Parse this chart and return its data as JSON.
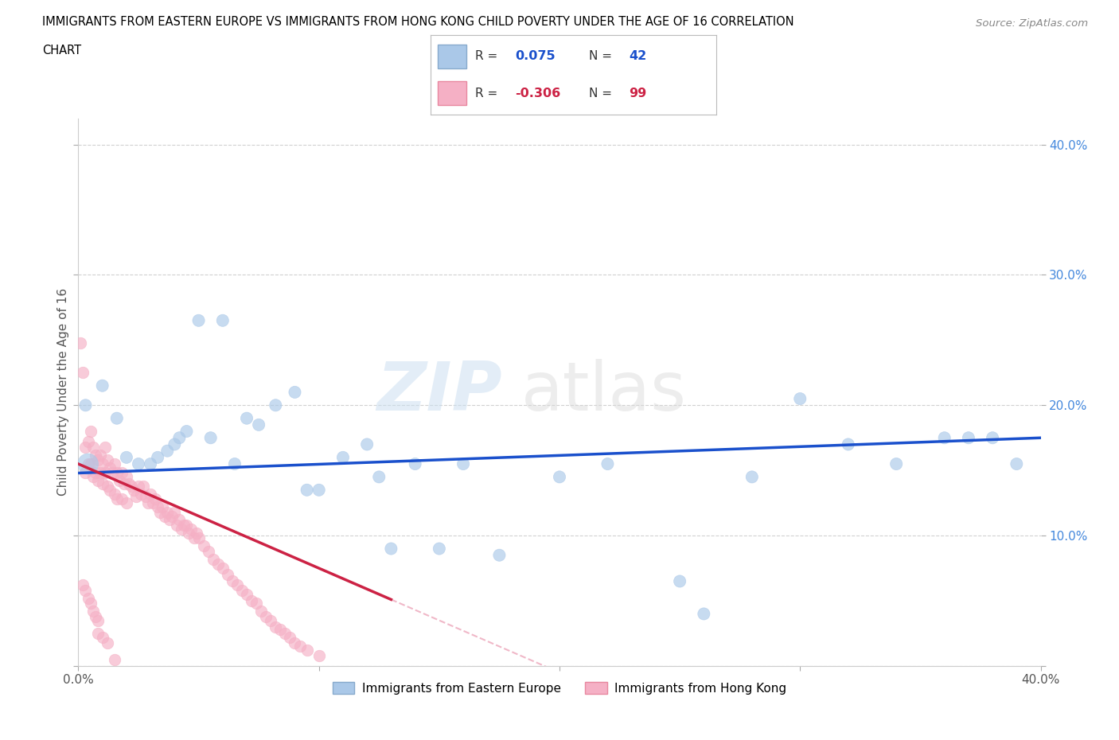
{
  "title_line1": "IMMIGRANTS FROM EASTERN EUROPE VS IMMIGRANTS FROM HONG KONG CHILD POVERTY UNDER THE AGE OF 16 CORRELATION",
  "title_line2": "CHART",
  "source": "Source: ZipAtlas.com",
  "ylabel": "Child Poverty Under the Age of 16",
  "xlim": [
    0.0,
    0.4
  ],
  "ylim": [
    0.0,
    0.42
  ],
  "xticks": [
    0.0,
    0.1,
    0.2,
    0.3,
    0.4
  ],
  "yticks": [
    0.0,
    0.1,
    0.2,
    0.3,
    0.4
  ],
  "xticklabels": [
    "0.0%",
    "",
    "",
    "",
    "40.0%"
  ],
  "yticklabels_right": [
    "",
    "10.0%",
    "20.0%",
    "30.0%",
    "40.0%"
  ],
  "blue_color": "#aac8e8",
  "pink_color": "#f5b0c5",
  "blue_edge_color": "#88aacc",
  "pink_edge_color": "#e888a0",
  "blue_line_color": "#1a50cc",
  "pink_line_color": "#cc2244",
  "pink_dash_color": "#f0b8c8",
  "grid_color": "#cccccc",
  "watermark_zip": "ZIP",
  "watermark_atlas": "atlas",
  "legend_r_blue": "0.075",
  "legend_n_blue": "42",
  "legend_r_pink": "-0.306",
  "legend_n_pink": "99",
  "legend_label_blue": "Immigrants from Eastern Europe",
  "legend_label_pink": "Immigrants from Hong Kong",
  "blue_x": [
    0.004,
    0.01,
    0.016,
    0.02,
    0.025,
    0.03,
    0.033,
    0.037,
    0.04,
    0.042,
    0.045,
    0.05,
    0.055,
    0.06,
    0.065,
    0.07,
    0.075,
    0.082,
    0.09,
    0.095,
    0.1,
    0.11,
    0.12,
    0.125,
    0.13,
    0.14,
    0.15,
    0.16,
    0.175,
    0.2,
    0.22,
    0.25,
    0.26,
    0.28,
    0.3,
    0.32,
    0.34,
    0.36,
    0.37,
    0.38,
    0.39,
    0.003
  ],
  "blue_y": [
    0.155,
    0.215,
    0.19,
    0.16,
    0.155,
    0.155,
    0.16,
    0.165,
    0.17,
    0.175,
    0.18,
    0.265,
    0.175,
    0.265,
    0.155,
    0.19,
    0.185,
    0.2,
    0.21,
    0.135,
    0.135,
    0.16,
    0.17,
    0.145,
    0.09,
    0.155,
    0.09,
    0.155,
    0.085,
    0.145,
    0.155,
    0.065,
    0.04,
    0.145,
    0.205,
    0.17,
    0.155,
    0.175,
    0.175,
    0.175,
    0.155,
    0.2
  ],
  "blue_sizes": [
    350,
    120,
    120,
    120,
    120,
    120,
    120,
    120,
    120,
    120,
    120,
    120,
    120,
    120,
    120,
    120,
    120,
    120,
    120,
    120,
    120,
    120,
    120,
    120,
    120,
    120,
    120,
    120,
    120,
    120,
    120,
    120,
    120,
    120,
    120,
    120,
    120,
    120,
    120,
    120,
    120,
    120
  ],
  "pink_x": [
    0.001,
    0.002,
    0.003,
    0.003,
    0.004,
    0.004,
    0.005,
    0.005,
    0.006,
    0.006,
    0.007,
    0.007,
    0.008,
    0.008,
    0.009,
    0.009,
    0.01,
    0.01,
    0.011,
    0.011,
    0.012,
    0.012,
    0.013,
    0.013,
    0.014,
    0.015,
    0.015,
    0.016,
    0.016,
    0.017,
    0.018,
    0.018,
    0.019,
    0.02,
    0.02,
    0.021,
    0.022,
    0.023,
    0.024,
    0.025,
    0.026,
    0.027,
    0.028,
    0.029,
    0.03,
    0.031,
    0.032,
    0.033,
    0.034,
    0.035,
    0.036,
    0.037,
    0.038,
    0.039,
    0.04,
    0.041,
    0.042,
    0.043,
    0.044,
    0.045,
    0.046,
    0.047,
    0.048,
    0.049,
    0.05,
    0.052,
    0.054,
    0.056,
    0.058,
    0.06,
    0.062,
    0.064,
    0.066,
    0.068,
    0.07,
    0.072,
    0.074,
    0.076,
    0.078,
    0.08,
    0.082,
    0.084,
    0.086,
    0.088,
    0.09,
    0.092,
    0.095,
    0.1,
    0.002,
    0.003,
    0.004,
    0.005,
    0.006,
    0.007,
    0.008,
    0.008,
    0.01,
    0.012,
    0.015
  ],
  "pink_y": [
    0.248,
    0.225,
    0.148,
    0.168,
    0.172,
    0.155,
    0.18,
    0.155,
    0.168,
    0.145,
    0.162,
    0.148,
    0.158,
    0.142,
    0.162,
    0.148,
    0.155,
    0.14,
    0.168,
    0.148,
    0.158,
    0.138,
    0.152,
    0.135,
    0.148,
    0.155,
    0.132,
    0.148,
    0.128,
    0.142,
    0.148,
    0.128,
    0.14,
    0.145,
    0.125,
    0.14,
    0.138,
    0.135,
    0.13,
    0.138,
    0.132,
    0.138,
    0.13,
    0.125,
    0.132,
    0.125,
    0.128,
    0.122,
    0.118,
    0.122,
    0.115,
    0.118,
    0.112,
    0.115,
    0.118,
    0.108,
    0.112,
    0.105,
    0.108,
    0.108,
    0.102,
    0.105,
    0.098,
    0.102,
    0.098,
    0.092,
    0.088,
    0.082,
    0.078,
    0.075,
    0.07,
    0.065,
    0.062,
    0.058,
    0.055,
    0.05,
    0.048,
    0.042,
    0.038,
    0.035,
    0.03,
    0.028,
    0.025,
    0.022,
    0.018,
    0.015,
    0.012,
    0.008,
    0.062,
    0.058,
    0.052,
    0.048,
    0.042,
    0.038,
    0.035,
    0.025,
    0.022,
    0.018,
    0.005
  ],
  "pink_sizes": [
    120,
    120,
    120,
    120,
    120,
    120,
    120,
    120,
    120,
    120,
    120,
    120,
    120,
    120,
    120,
    120,
    120,
    120,
    120,
    120,
    120,
    120,
    120,
    120,
    120,
    120,
    120,
    120,
    120,
    120,
    120,
    120,
    120,
    120,
    120,
    120,
    120,
    120,
    120,
    120,
    120,
    120,
    120,
    120,
    120,
    120,
    120,
    120,
    120,
    120,
    120,
    120,
    120,
    120,
    120,
    120,
    120,
    120,
    120,
    120,
    120,
    120,
    120,
    120,
    120,
    120,
    120,
    120,
    120,
    120,
    120,
    120,
    120,
    120,
    120,
    120,
    120,
    120,
    120,
    120,
    120,
    120,
    120,
    120,
    120,
    120,
    120,
    120,
    120,
    120,
    120,
    120,
    120,
    120,
    120,
    120,
    120,
    120,
    120
  ]
}
